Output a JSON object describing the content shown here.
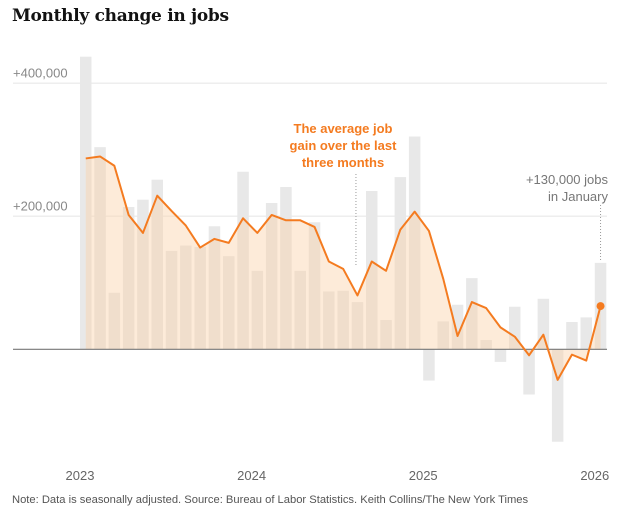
{
  "title": "Monthly change in jobs",
  "note": "Note: Data is seasonally adjusted.  Source: Bureau of Labor Statistics.  Keith Collins/The New York Times",
  "colors": {
    "bar": "#e8e8e8",
    "line": "#f47b20",
    "area": "#fbd3ab",
    "zero": "#777777",
    "grid": "#eeeeee"
  },
  "chart_data": {
    "type": "bar",
    "title": "Monthly change in jobs",
    "xlabel": "",
    "ylabel": "",
    "ylim": [
      -170000,
      450000
    ],
    "y_ticks": [
      {
        "value": 400000,
        "label": "+400,000"
      },
      {
        "value": 200000,
        "label": "+200,000"
      }
    ],
    "x_ticks": [
      {
        "index": 0,
        "label": "2023"
      },
      {
        "index": 12,
        "label": "2024"
      },
      {
        "index": 24,
        "label": "2025"
      },
      {
        "index": 36,
        "label": "2026"
      }
    ],
    "categories": [
      "2023-01",
      "2023-02",
      "2023-03",
      "2023-04",
      "2023-05",
      "2023-06",
      "2023-07",
      "2023-08",
      "2023-09",
      "2023-10",
      "2023-11",
      "2023-12",
      "2024-01",
      "2024-02",
      "2024-03",
      "2024-04",
      "2024-05",
      "2024-06",
      "2024-07",
      "2024-08",
      "2024-09",
      "2024-10",
      "2024-11",
      "2024-12",
      "2025-01",
      "2025-02",
      "2025-03",
      "2025-04",
      "2025-05",
      "2025-06",
      "2025-07",
      "2025-08",
      "2025-09",
      "2025-10",
      "2025-11",
      "2025-12",
      "2026-01"
    ],
    "series": [
      {
        "name": "Monthly change",
        "type": "bar",
        "values": [
          440000,
          304000,
          85000,
          214000,
          225000,
          255000,
          148000,
          156000,
          154000,
          185000,
          140000,
          267000,
          118000,
          220000,
          244000,
          118000,
          191000,
          87000,
          88000,
          71000,
          238000,
          44000,
          259000,
          320000,
          -47000,
          42000,
          67000,
          107000,
          14000,
          -19000,
          64000,
          -68000,
          76000,
          -139000,
          41000,
          48000,
          130000
        ]
      },
      {
        "name": "Three-month average",
        "type": "line",
        "values": [
          287000,
          290000,
          276000,
          202000,
          175000,
          231000,
          208000,
          186000,
          153000,
          166000,
          160000,
          197000,
          175000,
          202000,
          194000,
          194000,
          184000,
          132000,
          121000,
          81000,
          132000,
          118000,
          180000,
          207000,
          178000,
          106000,
          20000,
          71000,
          62000,
          33000,
          19000,
          -9000,
          22000,
          -46000,
          -8000,
          -17000,
          65000
        ]
      }
    ],
    "annotations": [
      {
        "text_lines": [
          "The average job",
          "gain over the last",
          "three months"
        ],
        "target_index": 19
      },
      {
        "text_lines": [
          "+130,000 jobs",
          "in January"
        ],
        "target_index": 36
      }
    ],
    "grid": true,
    "legend": "none"
  }
}
